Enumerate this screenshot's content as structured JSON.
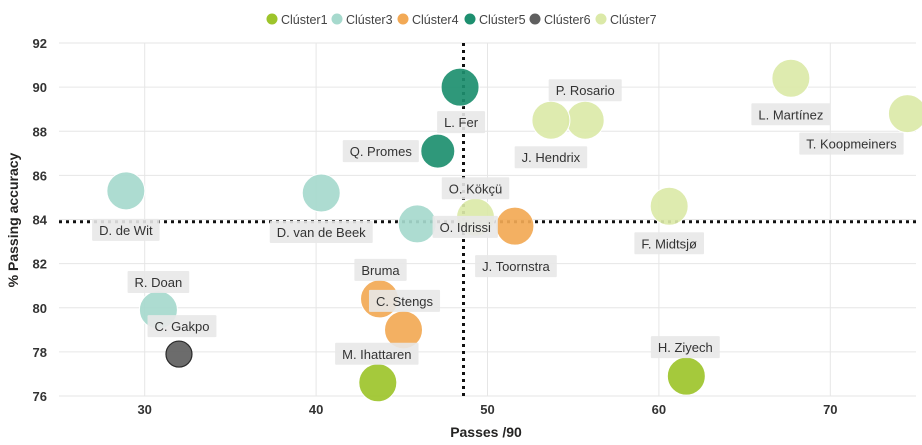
{
  "chart_data": {
    "type": "scatter",
    "xlabel": "Passes /90",
    "ylabel": "% Passing accuracy",
    "xlim": [
      25,
      75
    ],
    "ylim": [
      76,
      92
    ],
    "x_ticks": [
      30,
      40,
      50,
      60,
      70
    ],
    "y_ticks": [
      76,
      78,
      80,
      82,
      84,
      86,
      88,
      90,
      92
    ],
    "grid": true,
    "legend_position": "top-center",
    "reference_lines": {
      "x": 48.6,
      "y": 83.9
    },
    "series": [
      {
        "name": "Clúster1",
        "color": "#9dc42b",
        "points": [
          {
            "label": "M. Ihattaren",
            "x": 43.6,
            "y": 76.6
          },
          {
            "label": "H. Ziyech",
            "x": 61.6,
            "y": 76.9
          }
        ]
      },
      {
        "name": "Clúster3",
        "color": "#a6d9cd",
        "points": [
          {
            "label": "D. de Wit",
            "x": 28.9,
            "y": 85.3
          },
          {
            "label": "D. van de Beek",
            "x": 40.3,
            "y": 85.2
          },
          {
            "label": "O. Idrissi",
            "x": 45.9,
            "y": 83.8
          },
          {
            "label": "R. Doan",
            "x": 30.8,
            "y": 79.9
          }
        ]
      },
      {
        "name": "Clúster4",
        "color": "#f2a955",
        "points": [
          {
            "label": "J. Toornstra",
            "x": 51.6,
            "y": 83.7
          },
          {
            "label": "Bruma",
            "x": 43.7,
            "y": 80.4
          },
          {
            "label": "C. Stengs",
            "x": 45.1,
            "y": 79.0
          }
        ]
      },
      {
        "name": "Clúster5",
        "color": "#1d8f6f",
        "points": [
          {
            "label": "L. Fer",
            "x": 48.4,
            "y": 90.0
          },
          {
            "label": "Q. Promes",
            "x": 47.1,
            "y": 87.1
          }
        ]
      },
      {
        "name": "Clúster6",
        "color": "#5f5f5f",
        "points": [
          {
            "label": "C. Gakpo",
            "x": 32.0,
            "y": 77.9
          }
        ]
      },
      {
        "name": "Clúster7",
        "color": "#dbe9a8",
        "points": [
          {
            "label": "P. Rosario",
            "x": 55.7,
            "y": 88.5
          },
          {
            "label": "J. Hendrix",
            "x": 53.7,
            "y": 88.5
          },
          {
            "label": "L. Martínez",
            "x": 67.7,
            "y": 90.4
          },
          {
            "label": "T. Koopmeiners",
            "x": 74.5,
            "y": 88.8
          },
          {
            "label": "O. Kökçü",
            "x": 49.3,
            "y": 84.1
          },
          {
            "label": "F. Midtsjø",
            "x": 60.6,
            "y": 84.6
          }
        ]
      }
    ]
  }
}
